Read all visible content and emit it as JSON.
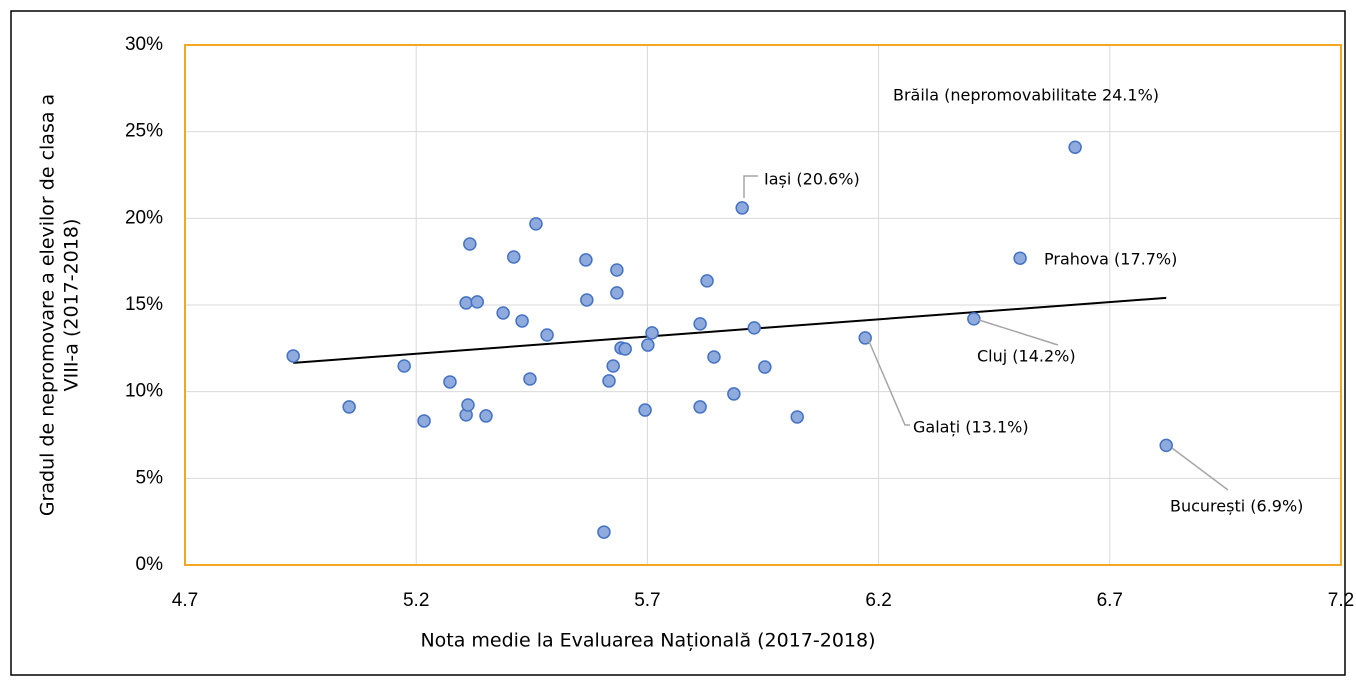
{
  "chart_data": {
    "type": "scatter",
    "x_label": "Nota medie la Evaluarea Națională (2017-2018)",
    "y_label": [
      "Gradul de nepromovare a elevilor de clasa a",
      "VIII-a (2017-2018)"
    ],
    "x": [
      4.934,
      5.055,
      5.174,
      5.217,
      5.273,
      5.308,
      5.308,
      5.312,
      5.316,
      5.332,
      5.351,
      5.388,
      5.411,
      5.429,
      5.446,
      5.459,
      5.483,
      5.567,
      5.569,
      5.606,
      5.617,
      5.626,
      5.634,
      5.634,
      5.643,
      5.652,
      5.695,
      5.701,
      5.71,
      5.814,
      5.814,
      5.829,
      5.844,
      5.887,
      5.905,
      5.931,
      5.954,
      6.024,
      6.171,
      6.406,
      6.506,
      6.625,
      6.822
    ],
    "values": [
      12.06,
      9.12,
      11.48,
      8.31,
      10.56,
      15.12,
      8.66,
      9.23,
      18.52,
      15.18,
      8.6,
      14.54,
      17.77,
      14.08,
      10.73,
      19.68,
      13.27,
      17.6,
      15.29,
      1.9,
      10.62,
      11.48,
      17.02,
      15.7,
      12.52,
      12.46,
      8.94,
      12.69,
      13.39,
      13.91,
      9.12,
      16.39,
      12.0,
      9.87,
      20.6,
      13.68,
      11.42,
      8.54,
      13.1,
      14.2,
      17.7,
      24.1,
      6.9
    ],
    "color": "#8faadc",
    "edge_color": "#4472c4",
    "trendline": {
      "x": [
        4.934,
        6.822
      ],
      "y": [
        11.66,
        15.41
      ],
      "color": "#000000"
    },
    "annotations": [
      "Brăila (nepromovabilitate 24.1%)",
      "Iași (20.6%)",
      "Prahova (17.7%)",
      "Cluj (14.2%)",
      "Galați (13.1%)",
      "București (6.9%)"
    ],
    "xlim": [
      4.7,
      7.2
    ],
    "xticks": [
      4.7,
      5.2,
      5.7,
      6.2,
      6.7,
      7.2
    ],
    "ylim": [
      0,
      30
    ],
    "yticks": [
      {
        "value": 0,
        "label": "0%"
      },
      {
        "value": 5,
        "label": "5%"
      },
      {
        "value": 10,
        "label": "10%"
      },
      {
        "value": 15,
        "label": "15%"
      },
      {
        "value": 20,
        "label": "20%"
      },
      {
        "value": 25,
        "label": "25%"
      },
      {
        "value": 30,
        "label": "30%"
      }
    ],
    "grid": true
  }
}
